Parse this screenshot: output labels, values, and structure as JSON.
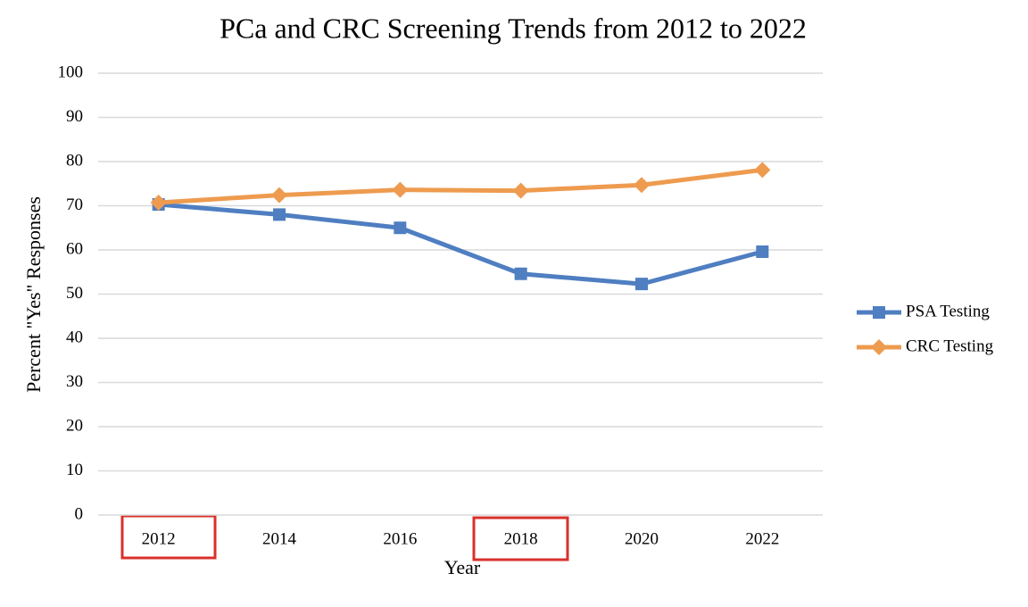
{
  "chart_data": {
    "type": "line",
    "title": "PCa and CRC Screening Trends from 2012 to 2022",
    "x_label": "Year",
    "y_label": "Percent  \"Yes\" Responses",
    "categories": [
      "2012",
      "2014",
      "2016",
      "2018",
      "2020",
      "2022"
    ],
    "series": [
      {
        "name": "PSA Testing",
        "color": "#4f7ec1",
        "marker": "square",
        "values": [
          70.3,
          68.0,
          65.0,
          54.6,
          52.3,
          59.6
        ]
      },
      {
        "name": "CRC Testing",
        "color": "#ee9b4f",
        "marker": "diamond",
        "values": [
          70.7,
          72.4,
          73.6,
          73.4,
          74.7,
          78.1
        ]
      }
    ],
    "ylim": [
      0,
      100
    ],
    "yticks": [
      0,
      10,
      20,
      30,
      40,
      50,
      60,
      70,
      80,
      90,
      100
    ],
    "grid": true,
    "legend": "right"
  }
}
